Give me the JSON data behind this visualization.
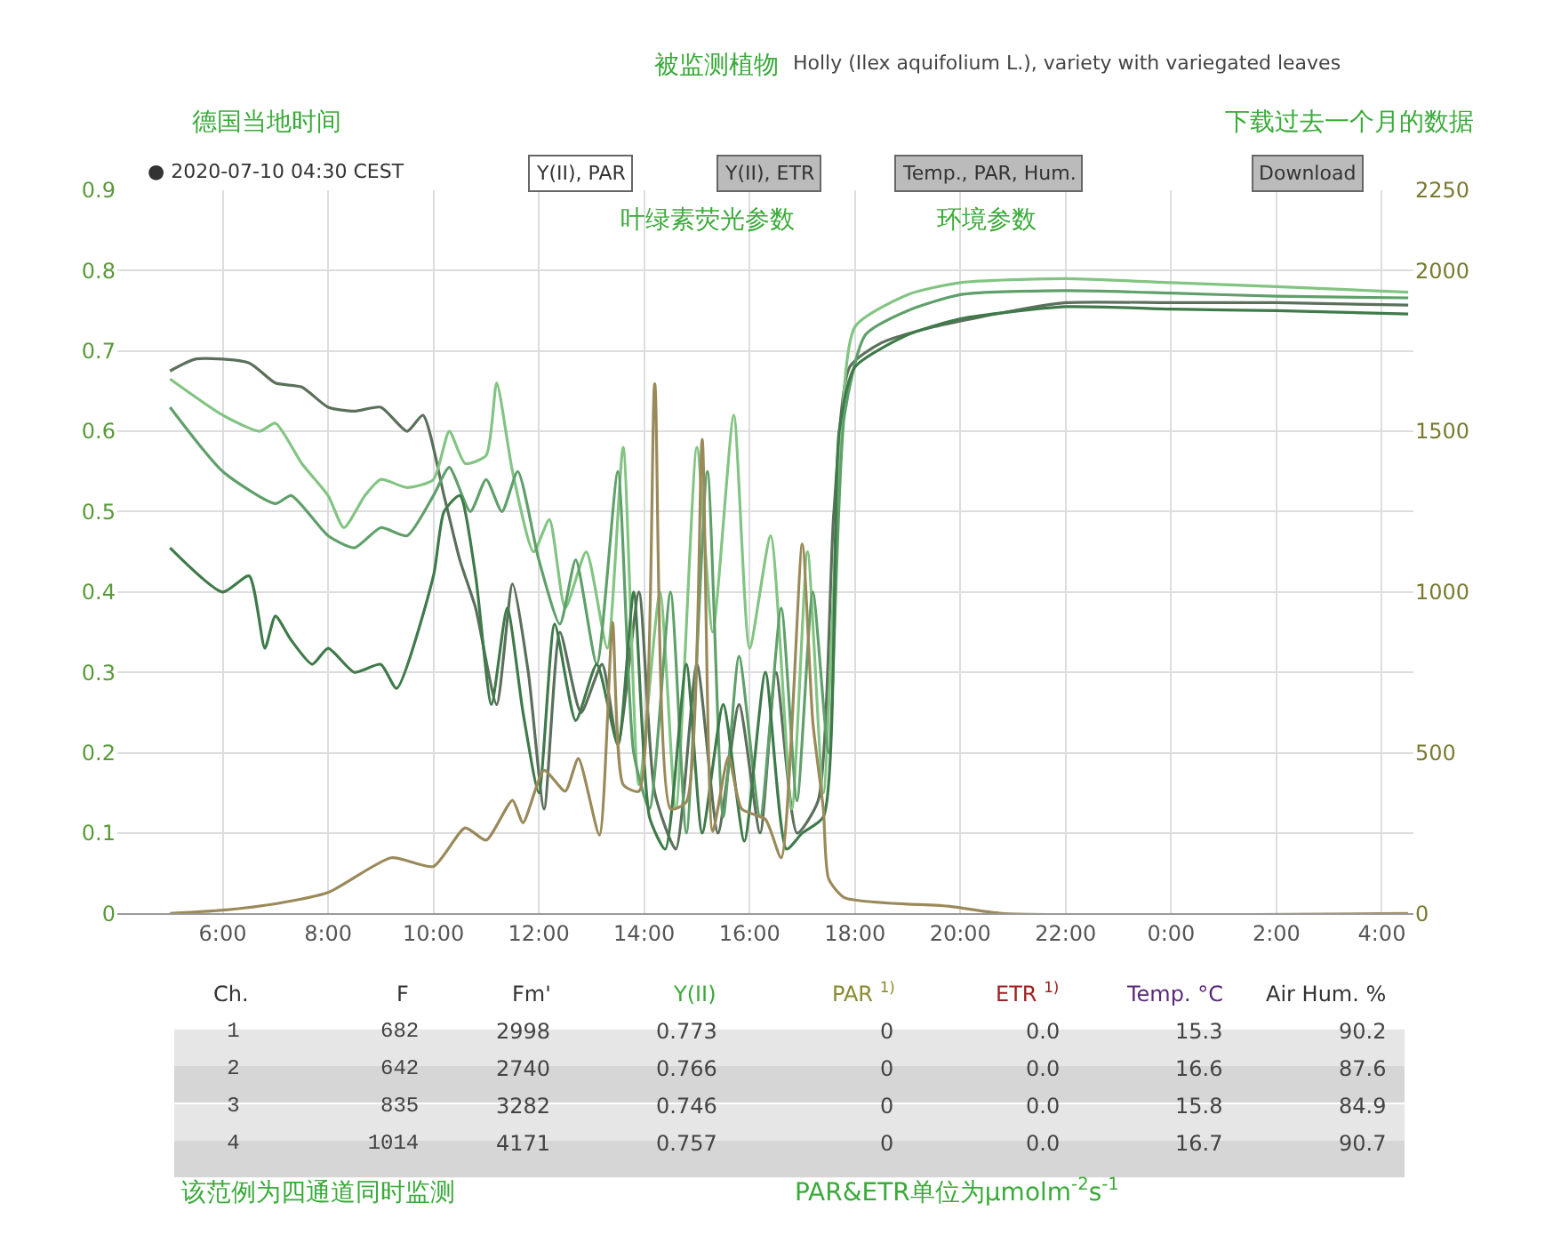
{
  "chart_data": [
    {
      "type": "line",
      "title": "被监测植物",
      "subtitle": "Holly (Ilex aquifolium L.), variety with variegated leaves",
      "annotations": [
        "德国当地时间",
        "下载过去一个月的数据",
        "● 2020-07-10 04:30 CEST",
        "Y(II), PAR",
        "Y(II), ETR",
        "Temp., PAR, Hum.",
        "Download",
        "叶绿素荧光参数",
        "环境参数"
      ],
      "xlim": [
        "2020-07-09T04:00",
        "2020-07-10T04:36"
      ],
      "xticks": [
        {
          "value": "2020-07-09T06:00",
          "label": "6:00"
        },
        {
          "value": "2020-07-09T08:00",
          "label": "8:00"
        },
        {
          "value": "2020-07-09T10:00",
          "label": "10:00"
        },
        {
          "value": "2020-07-09T12:00",
          "label": "12:00"
        },
        {
          "value": "2020-07-09T14:00",
          "label": "14:00"
        },
        {
          "value": "2020-07-09T16:00",
          "label": "16:00"
        },
        {
          "value": "2020-07-09T18:00",
          "label": "18:00"
        },
        {
          "value": "2020-07-09T20:00",
          "label": "20:00"
        },
        {
          "value": "2020-07-09T22:00",
          "label": "22:00"
        },
        {
          "value": "2020-07-10T00:00",
          "label": "0:00"
        },
        {
          "value": "2020-07-10T02:00",
          "label": "2:00"
        },
        {
          "value": "2020-07-10T04:00",
          "label": "4:00"
        }
      ],
      "ylim": [
        0,
        0.9
      ],
      "yticks": [
        0,
        0.1,
        0.2,
        0.3,
        0.4,
        0.5,
        0.6,
        0.7,
        0.8,
        0.9
      ],
      "y2lim": [
        0,
        2250
      ],
      "y2ticks": [
        0,
        500,
        1000,
        1500,
        2000,
        2250
      ],
      "grid": true,
      "line_style": "solid",
      "series": [
        {
          "color": "#5b705b",
          "x": [
            "2020-07-09T05:00",
            "2020-07-09T05:30",
            "2020-07-09T06:30",
            "2020-07-09T07:00",
            "2020-07-09T07:30",
            "2020-07-09T08:00",
            "2020-07-09T08:30",
            "2020-07-09T09:00",
            "2020-07-09T09:30",
            "2020-07-09T09:48",
            "2020-07-09T10:12",
            "2020-07-09T10:30",
            "2020-07-09T10:48",
            "2020-07-09T11:12",
            "2020-07-09T11:30",
            "2020-07-09T11:48",
            "2020-07-09T12:06",
            "2020-07-09T12:24",
            "2020-07-09T12:48",
            "2020-07-09T13:12",
            "2020-07-09T13:30",
            "2020-07-09T13:54",
            "2020-07-09T14:12",
            "2020-07-09T14:36",
            "2020-07-09T15:00",
            "2020-07-09T15:24",
            "2020-07-09T15:48",
            "2020-07-09T16:12",
            "2020-07-09T16:30",
            "2020-07-09T16:54",
            "2020-07-09T17:18",
            "2020-07-09T17:36",
            "2020-07-09T17:54",
            "2020-07-09T18:30",
            "2020-07-09T19:30",
            "2020-07-09T21:00",
            "2020-07-09T22:00",
            "2020-07-10T00:00",
            "2020-07-10T02:00",
            "2020-07-10T04:30"
          ],
          "values": [
            0.675,
            0.69,
            0.685,
            0.66,
            0.655,
            0.63,
            0.625,
            0.63,
            0.6,
            0.62,
            0.52,
            0.44,
            0.38,
            0.26,
            0.41,
            0.3,
            0.13,
            0.35,
            0.25,
            0.31,
            0.21,
            0.4,
            0.15,
            0.08,
            0.31,
            0.1,
            0.26,
            0.1,
            0.3,
            0.1,
            0.14,
            0.5,
            0.68,
            0.71,
            0.73,
            0.75,
            0.76,
            0.76,
            0.76,
            0.757
          ]
        },
        {
          "color": "#82c482",
          "x": [
            "2020-07-09T05:00",
            "2020-07-09T06:00",
            "2020-07-09T06:42",
            "2020-07-09T07:00",
            "2020-07-09T07:30",
            "2020-07-09T08:00",
            "2020-07-09T08:18",
            "2020-07-09T08:42",
            "2020-07-09T09:00",
            "2020-07-09T09:30",
            "2020-07-09T10:00",
            "2020-07-09T10:18",
            "2020-07-09T10:36",
            "2020-07-09T11:00",
            "2020-07-09T11:12",
            "2020-07-09T11:30",
            "2020-07-09T11:54",
            "2020-07-09T12:12",
            "2020-07-09T12:30",
            "2020-07-09T12:54",
            "2020-07-09T13:18",
            "2020-07-09T13:36",
            "2020-07-09T13:54",
            "2020-07-09T14:18",
            "2020-07-09T14:36",
            "2020-07-09T15:00",
            "2020-07-09T15:18",
            "2020-07-09T15:42",
            "2020-07-09T16:00",
            "2020-07-09T16:24",
            "2020-07-09T16:48",
            "2020-07-09T17:06",
            "2020-07-09T17:24",
            "2020-07-09T17:42",
            "2020-07-09T18:00",
            "2020-07-09T19:00",
            "2020-07-09T20:00",
            "2020-07-09T22:00",
            "2020-07-10T00:00",
            "2020-07-10T02:00",
            "2020-07-10T04:30"
          ],
          "values": [
            0.665,
            0.62,
            0.6,
            0.61,
            0.56,
            0.52,
            0.48,
            0.52,
            0.54,
            0.53,
            0.54,
            0.6,
            0.56,
            0.57,
            0.66,
            0.55,
            0.45,
            0.49,
            0.38,
            0.45,
            0.33,
            0.58,
            0.16,
            0.4,
            0.13,
            0.58,
            0.35,
            0.62,
            0.33,
            0.47,
            0.13,
            0.45,
            0.15,
            0.55,
            0.73,
            0.77,
            0.785,
            0.79,
            0.785,
            0.78,
            0.773
          ]
        },
        {
          "color": "#5fa06a",
          "x": [
            "2020-07-09T05:00",
            "2020-07-09T06:00",
            "2020-07-09T07:00",
            "2020-07-09T07:18",
            "2020-07-09T08:00",
            "2020-07-09T08:30",
            "2020-07-09T09:00",
            "2020-07-09T09:30",
            "2020-07-09T10:00",
            "2020-07-09T10:18",
            "2020-07-09T10:42",
            "2020-07-09T11:00",
            "2020-07-09T11:18",
            "2020-07-09T11:36",
            "2020-07-09T12:00",
            "2020-07-09T12:24",
            "2020-07-09T12:42",
            "2020-07-09T13:06",
            "2020-07-09T13:30",
            "2020-07-09T13:48",
            "2020-07-09T14:06",
            "2020-07-09T14:30",
            "2020-07-09T14:48",
            "2020-07-09T15:12",
            "2020-07-09T15:30",
            "2020-07-09T15:48",
            "2020-07-09T16:12",
            "2020-07-09T16:36",
            "2020-07-09T16:54",
            "2020-07-09T17:12",
            "2020-07-09T17:30",
            "2020-07-09T17:48",
            "2020-07-09T18:12",
            "2020-07-09T19:00",
            "2020-07-09T20:00",
            "2020-07-09T22:00",
            "2020-07-10T00:00",
            "2020-07-10T02:00",
            "2020-07-10T04:30"
          ],
          "values": [
            0.63,
            0.55,
            0.51,
            0.52,
            0.47,
            0.455,
            0.48,
            0.47,
            0.52,
            0.555,
            0.5,
            0.54,
            0.5,
            0.55,
            0.44,
            0.36,
            0.44,
            0.31,
            0.55,
            0.2,
            0.13,
            0.4,
            0.1,
            0.55,
            0.12,
            0.32,
            0.12,
            0.38,
            0.14,
            0.4,
            0.2,
            0.62,
            0.72,
            0.75,
            0.77,
            0.775,
            0.772,
            0.768,
            0.766
          ]
        },
        {
          "color": "#3f7a4a",
          "x": [
            "2020-07-09T05:00",
            "2020-07-09T06:00",
            "2020-07-09T06:30",
            "2020-07-09T06:48",
            "2020-07-09T07:00",
            "2020-07-09T07:18",
            "2020-07-09T07:42",
            "2020-07-09T08:00",
            "2020-07-09T08:30",
            "2020-07-09T09:00",
            "2020-07-09T09:18",
            "2020-07-09T10:00",
            "2020-07-09T10:12",
            "2020-07-09T10:30",
            "2020-07-09T10:48",
            "2020-07-09T11:06",
            "2020-07-09T11:24",
            "2020-07-09T11:42",
            "2020-07-09T12:00",
            "2020-07-09T12:18",
            "2020-07-09T12:42",
            "2020-07-09T13:06",
            "2020-07-09T13:30",
            "2020-07-09T13:48",
            "2020-07-09T14:06",
            "2020-07-09T14:24",
            "2020-07-09T14:48",
            "2020-07-09T15:06",
            "2020-07-09T15:30",
            "2020-07-09T15:54",
            "2020-07-09T16:18",
            "2020-07-09T16:42",
            "2020-07-09T17:00",
            "2020-07-09T17:24",
            "2020-07-09T17:42",
            "2020-07-09T18:00",
            "2020-07-09T19:00",
            "2020-07-09T20:00",
            "2020-07-09T22:00",
            "2020-07-10T00:00",
            "2020-07-10T02:00",
            "2020-07-10T04:30"
          ],
          "values": [
            0.455,
            0.4,
            0.42,
            0.33,
            0.37,
            0.34,
            0.31,
            0.33,
            0.3,
            0.31,
            0.28,
            0.42,
            0.5,
            0.52,
            0.42,
            0.26,
            0.38,
            0.25,
            0.15,
            0.36,
            0.24,
            0.31,
            0.21,
            0.4,
            0.12,
            0.08,
            0.31,
            0.1,
            0.26,
            0.09,
            0.3,
            0.08,
            0.1,
            0.12,
            0.6,
            0.68,
            0.72,
            0.74,
            0.755,
            0.752,
            0.75,
            0.746
          ]
        },
        {
          "color": "#9a8a5a",
          "axis": "y2",
          "x": [
            "2020-07-09T05:00",
            "2020-07-09T06:00",
            "2020-07-09T07:00",
            "2020-07-09T08:00",
            "2020-07-09T09:12",
            "2020-07-09T10:00",
            "2020-07-09T10:36",
            "2020-07-09T11:00",
            "2020-07-09T11:30",
            "2020-07-09T11:42",
            "2020-07-09T12:06",
            "2020-07-09T12:30",
            "2020-07-09T12:45",
            "2020-07-09T13:09",
            "2020-07-09T13:24",
            "2020-07-09T13:36",
            "2020-07-09T13:54",
            "2020-07-09T14:12",
            "2020-07-09T14:30",
            "2020-07-09T14:48",
            "2020-07-09T15:06",
            "2020-07-09T15:18",
            "2020-07-09T15:36",
            "2020-07-09T15:51",
            "2020-07-09T16:18",
            "2020-07-09T16:36",
            "2020-07-09T17:00",
            "2020-07-09T17:12",
            "2020-07-09T17:24",
            "2020-07-09T17:30",
            "2020-07-09T17:48",
            "2020-07-09T19:48",
            "2020-07-09T20:48",
            "2020-07-10T04:30"
          ],
          "values": [
            0,
            10,
            30,
            65,
            173,
            146,
            266,
            228,
            352,
            282,
            445,
            380,
            482,
            244,
            905,
            401,
            380,
            1648,
            325,
            347,
            1475,
            255,
            488,
            325,
            293,
            173,
            1149,
            596,
            325,
            108,
            49,
            22,
            0,
            0
          ]
        }
      ]
    },
    {
      "type": "other",
      "annotations": [
        "Ch.",
        "F",
        "Fm'",
        "Y(II)",
        "PAR $^{1)}$",
        "ETR $^{1)}$",
        "Temp. °C",
        "Air Hum. %",
        "1",
        "682",
        "2998",
        "0.773",
        "0",
        "0.0",
        "15.3",
        "90.2",
        "2",
        "642",
        "2740",
        "0.766",
        "0",
        "0.0",
        "16.6",
        "87.6",
        "3",
        "835",
        "3282",
        "0.746",
        "0",
        "0.0",
        "15.8",
        "84.9",
        "4",
        "1014",
        "4171",
        "0.757",
        "0",
        "0.0",
        "16.7",
        "90.7",
        "该范例为四通道同时监测",
        "PAR&ETR单位为μmolm$^{-2}$s$^{-1}$"
      ]
    }
  ]
}
